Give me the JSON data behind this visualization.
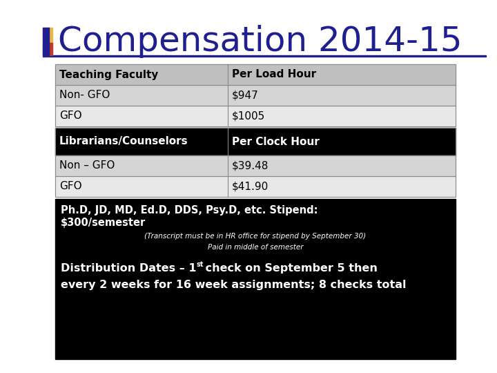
{
  "title": "Compensation 2014-15",
  "title_color": "#1f1f8f",
  "title_fontsize": 36,
  "background_color": "#ffffff",
  "table1_header": [
    "Teaching Faculty",
    "Per Load Hour"
  ],
  "table1_rows": [
    [
      "Non- GFO",
      "$947"
    ],
    [
      "GFO",
      "$1005"
    ]
  ],
  "table1_header_bg": "#c0c0c0",
  "table1_row1_bg": "#d4d4d4",
  "table1_row2_bg": "#e8e8e8",
  "table2_header": [
    "Librarians/Counselors",
    "Per Clock Hour"
  ],
  "table2_rows": [
    [
      "Non – GFO",
      "$39.48"
    ],
    [
      "GFO",
      "$41.90"
    ]
  ],
  "table2_header_bg": "#000000",
  "table2_header_fg": "#ffffff",
  "table2_row1_bg": "#d4d4d4",
  "table2_row2_bg": "#e8e8e8",
  "bottom_box_bg": "#000000",
  "bottom_box_fg": "#ffffff",
  "bottom_b1": "Ph.D, JD, MD, Ed.D, DDS, Psy.D, etc. Stipend:",
  "bottom_b2": "$300/semester",
  "bottom_s1": "(Transcript must be in HR office for stipend by September 30)",
  "bottom_s2": "Paid in middle of semester",
  "bottom_d1a": "Distribution Dates – 1",
  "bottom_d1b": "st",
  "bottom_d1c": " check on September 5 then",
  "bottom_d2": "every 2 weeks for 16 week assignments; 8 checks total",
  "divider_color": "#1f1f8f",
  "accent_yellow": "#e8b84b",
  "accent_red": "#c0392b",
  "accent_blue": "#1f1f8f",
  "border_color": "#888888"
}
